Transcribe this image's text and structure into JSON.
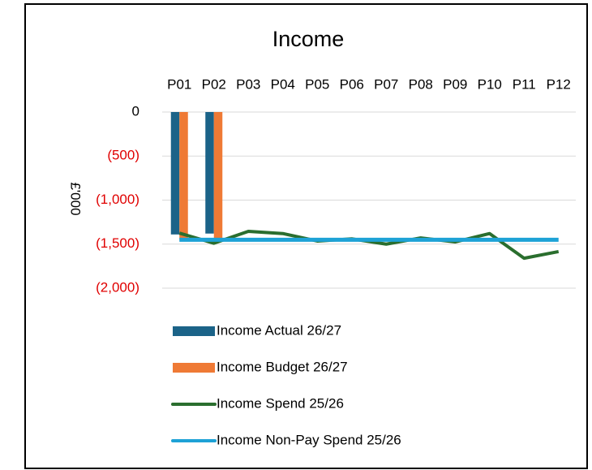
{
  "chart_data": {
    "type": "combo",
    "title": "Income",
    "y_label": "£'000",
    "categories": [
      "P01",
      "P02",
      "P03",
      "P04",
      "P05",
      "P06",
      "P07",
      "P08",
      "P09",
      "P10",
      "P11",
      "P12"
    ],
    "series": [
      {
        "name": "Income Actual 26/27",
        "type": "bar",
        "color": "#1b6388",
        "values": [
          -1390,
          -1380,
          null,
          null,
          null,
          null,
          null,
          null,
          null,
          null,
          null,
          null
        ]
      },
      {
        "name": "Income Budget 26/27",
        "type": "bar",
        "color": "#ef7a35",
        "values": [
          -1450,
          -1450,
          null,
          null,
          null,
          null,
          null,
          null,
          null,
          null,
          null,
          null
        ]
      },
      {
        "name": "Income Spend 25/26",
        "type": "line",
        "color": "#2a6e2e",
        "values": [
          -1375,
          -1490,
          -1355,
          -1380,
          -1465,
          -1440,
          -1500,
          -1430,
          -1475,
          -1380,
          -1660,
          -1585
        ]
      },
      {
        "name": "Income Non-Pay Spend 25/26",
        "type": "line",
        "color": "#1ea2d6",
        "values": [
          -1450,
          -1450,
          -1450,
          -1450,
          -1450,
          -1450,
          -1450,
          -1450,
          -1450,
          -1450,
          -1450,
          -1450
        ]
      }
    ],
    "ylim": [
      -2000,
      0
    ],
    "yticks": [
      {
        "value": -2000,
        "label": "(2,000)"
      },
      {
        "value": -1500,
        "label": "(1,500)"
      },
      {
        "value": -1000,
        "label": "(1,000)"
      },
      {
        "value": -500,
        "label": "(500)"
      },
      0
    ],
    "grid": true,
    "negative_tick_color": "#e00000",
    "legend": "bottom"
  }
}
